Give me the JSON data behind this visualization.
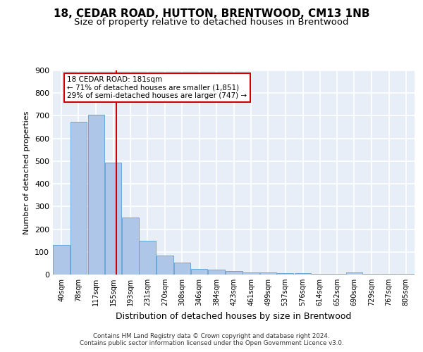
{
  "title": "18, CEDAR ROAD, HUTTON, BRENTWOOD, CM13 1NB",
  "subtitle": "Size of property relative to detached houses in Brentwood",
  "xlabel": "Distribution of detached houses by size in Brentwood",
  "ylabel": "Number of detached properties",
  "bar_edges": [
    40,
    78,
    117,
    155,
    193,
    231,
    270,
    308,
    346,
    384,
    423,
    461,
    499,
    537,
    576,
    614,
    652,
    690,
    729,
    767,
    805
  ],
  "bar_values": [
    130,
    675,
    705,
    495,
    250,
    150,
    85,
    52,
    25,
    22,
    15,
    10,
    8,
    5,
    5,
    4,
    3,
    8,
    3,
    2,
    2
  ],
  "bar_color": "#aec6e8",
  "bar_edge_color": "#5a9fd4",
  "vline_x": 181,
  "vline_color": "#cc0000",
  "annotation_text": "18 CEDAR ROAD: 181sqm\n← 71% of detached houses are smaller (1,851)\n29% of semi-detached houses are larger (747) →",
  "annotation_box_color": "#ffffff",
  "annotation_box_edge": "#cc0000",
  "ylim": [
    0,
    900
  ],
  "yticks": [
    0,
    100,
    200,
    300,
    400,
    500,
    600,
    700,
    800,
    900
  ],
  "background_color": "#e8eef8",
  "grid_color": "#ffffff",
  "footer_line1": "Contains HM Land Registry data © Crown copyright and database right 2024.",
  "footer_line2": "Contains public sector information licensed under the Open Government Licence v3.0.",
  "title_fontsize": 11,
  "subtitle_fontsize": 9.5
}
